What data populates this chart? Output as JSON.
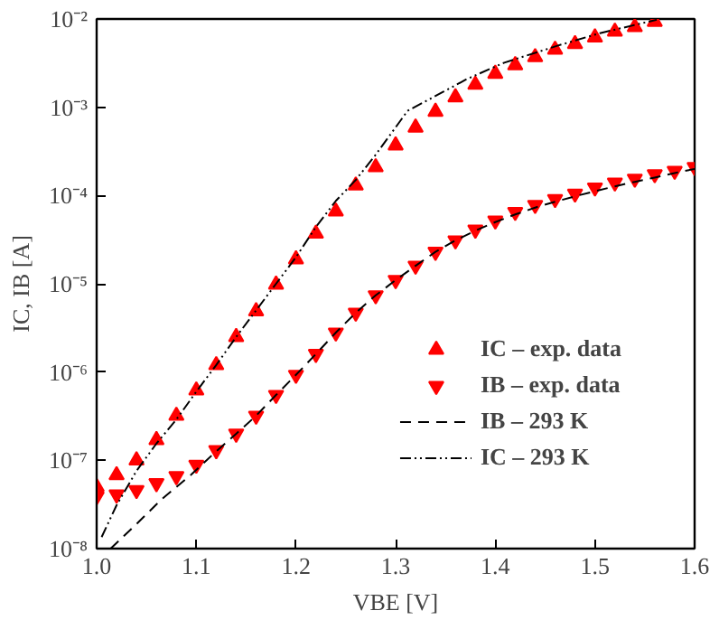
{
  "chart_data": {
    "type": "scatter",
    "xlabel": "VBE [V]",
    "ylabel": "IC, IB [A]",
    "log": "y",
    "grid": false,
    "legend": "bottom right",
    "xlim": [
      1.0,
      1.6
    ],
    "xticks": [
      {
        "value": 1.0,
        "label": "1.0"
      },
      1.1,
      1.2,
      1.3,
      1.4,
      1.5,
      1.6
    ],
    "ylim": [
      1e-08,
      0.01
    ],
    "yticks": [
      {
        "value": 1e-08,
        "label": "10⁻⁸"
      },
      {
        "value": 1e-07,
        "label": "10⁻⁷"
      },
      {
        "value": 1e-06,
        "label": "10⁻⁶"
      },
      {
        "value": 1e-05,
        "label": "10⁻⁵"
      },
      {
        "value": 0.0001,
        "label": "10⁻⁴"
      },
      {
        "value": 0.001,
        "label": "10⁻³"
      },
      {
        "value": 0.01,
        "label": "10⁻²"
      }
    ],
    "series": [
      {
        "name": "IC – exp. data",
        "marker": "triangle",
        "color": "#ff0000",
        "x": [
          1.0,
          1.02,
          1.04,
          1.06,
          1.08,
          1.1,
          1.12,
          1.14,
          1.16,
          1.18,
          1.2,
          1.22,
          1.24,
          1.26,
          1.28,
          1.3,
          1.32,
          1.34,
          1.36,
          1.38,
          1.4,
          1.42,
          1.44,
          1.46,
          1.48,
          1.5,
          1.52,
          1.54,
          1.56
        ],
        "values": [
          5e-08,
          6.8e-08,
          1e-07,
          1.7e-07,
          3.2e-07,
          6.2e-07,
          1.2e-06,
          2.5e-06,
          4.9e-06,
          9.8e-06,
          1.9e-05,
          3.7e-05,
          6.6e-05,
          0.00013,
          0.00021,
          0.00037,
          0.00059,
          0.00089,
          0.0013,
          0.0018,
          0.0024,
          0.003,
          0.0037,
          0.0045,
          0.0052,
          0.0062,
          0.0072,
          0.0081,
          0.0093
        ]
      },
      {
        "name": "IB – exp. data",
        "marker": "triangle_down",
        "color": "#ff0000",
        "x": [
          1.0,
          1.02,
          1.04,
          1.06,
          1.08,
          1.1,
          1.12,
          1.14,
          1.16,
          1.18,
          1.2,
          1.22,
          1.24,
          1.26,
          1.28,
          1.3,
          1.32,
          1.34,
          1.36,
          1.38,
          1.4,
          1.42,
          1.44,
          1.46,
          1.48,
          1.5,
          1.52,
          1.54,
          1.56,
          1.58,
          1.6
        ],
        "values": [
          3.9e-08,
          4.1e-08,
          4.6e-08,
          5.5e-08,
          6.6e-08,
          8.9e-08,
          1.3e-07,
          2e-07,
          3.2e-07,
          5.5e-07,
          9.3e-07,
          1.6e-06,
          2.8e-06,
          4.7e-06,
          7.4e-06,
          1.1e-05,
          1.6e-05,
          2.3e-05,
          3.1e-05,
          4.1e-05,
          5.2e-05,
          6.5e-05,
          7.8e-05,
          9.1e-05,
          0.000105,
          0.000123,
          0.00014,
          0.000155,
          0.000174,
          0.00019,
          0.00021
        ]
      },
      {
        "name": "IB – 293 K",
        "type": "line",
        "line_style": "dashed",
        "color": "#000000",
        "x": [
          1.014,
          1.04,
          1.065,
          1.095,
          1.116,
          1.14,
          1.16,
          1.18,
          1.2,
          1.22,
          1.24,
          1.26,
          1.28,
          1.3,
          1.32,
          1.34,
          1.36,
          1.38,
          1.4,
          1.42,
          1.44,
          1.46,
          1.48,
          1.5,
          1.52,
          1.54,
          1.56,
          1.58,
          1.6
        ],
        "values": [
          1e-08,
          1.9e-08,
          3.6e-08,
          6.9e-08,
          1.15e-07,
          2e-07,
          3.2e-07,
          5.5e-07,
          9.3e-07,
          1.6e-06,
          2.8e-06,
          4.7e-06,
          7.4e-06,
          1.1e-05,
          1.6e-05,
          2.3e-05,
          3.1e-05,
          4e-05,
          5e-05,
          6.1e-05,
          7.3e-05,
          8.5e-05,
          9.8e-05,
          0.000112,
          0.000127,
          0.000143,
          0.00016,
          0.00018,
          0.0002
        ]
      },
      {
        "name": "IC – 293 K",
        "type": "line",
        "line_style": "dashdot",
        "color": "#000000",
        "x": [
          1.005,
          1.02,
          1.04,
          1.06,
          1.08,
          1.1,
          1.12,
          1.14,
          1.16,
          1.18,
          1.2,
          1.22,
          1.24,
          1.26,
          1.28,
          1.312,
          1.348,
          1.372,
          1.409,
          1.463,
          1.505,
          1.562
        ],
        "values": [
          1.35e-08,
          3.1e-08,
          7.6e-08,
          1.55e-07,
          2.9e-07,
          6e-07,
          1.2e-06,
          2.5e-06,
          5e-06,
          1e-05,
          2e-05,
          4.4e-05,
          8.7e-05,
          0.00015,
          0.00029,
          0.00091,
          0.0015,
          0.0021,
          0.0032,
          0.005,
          0.0069,
          0.0098
        ]
      }
    ]
  }
}
